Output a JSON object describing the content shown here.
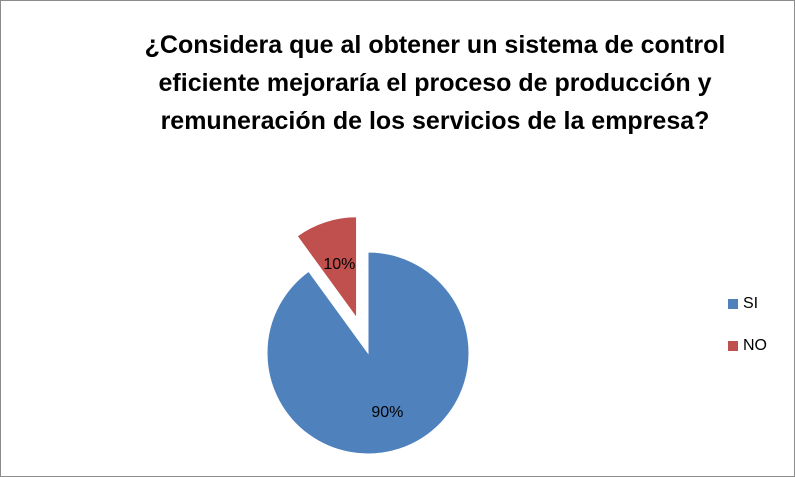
{
  "chart_data": {
    "type": "pie",
    "title": "¿Considera que al obtener un sistema de control\neficiente mejoraría  el proceso de producción y\nremuneración de los servicios de la empresa?",
    "categories": [
      "SI",
      "NO"
    ],
    "values": [
      90,
      10
    ],
    "value_labels": [
      "90%",
      "10%"
    ],
    "colors": [
      "#4f81bd",
      "#c0504d"
    ],
    "exploded": [
      false,
      true
    ],
    "legend": "right"
  }
}
